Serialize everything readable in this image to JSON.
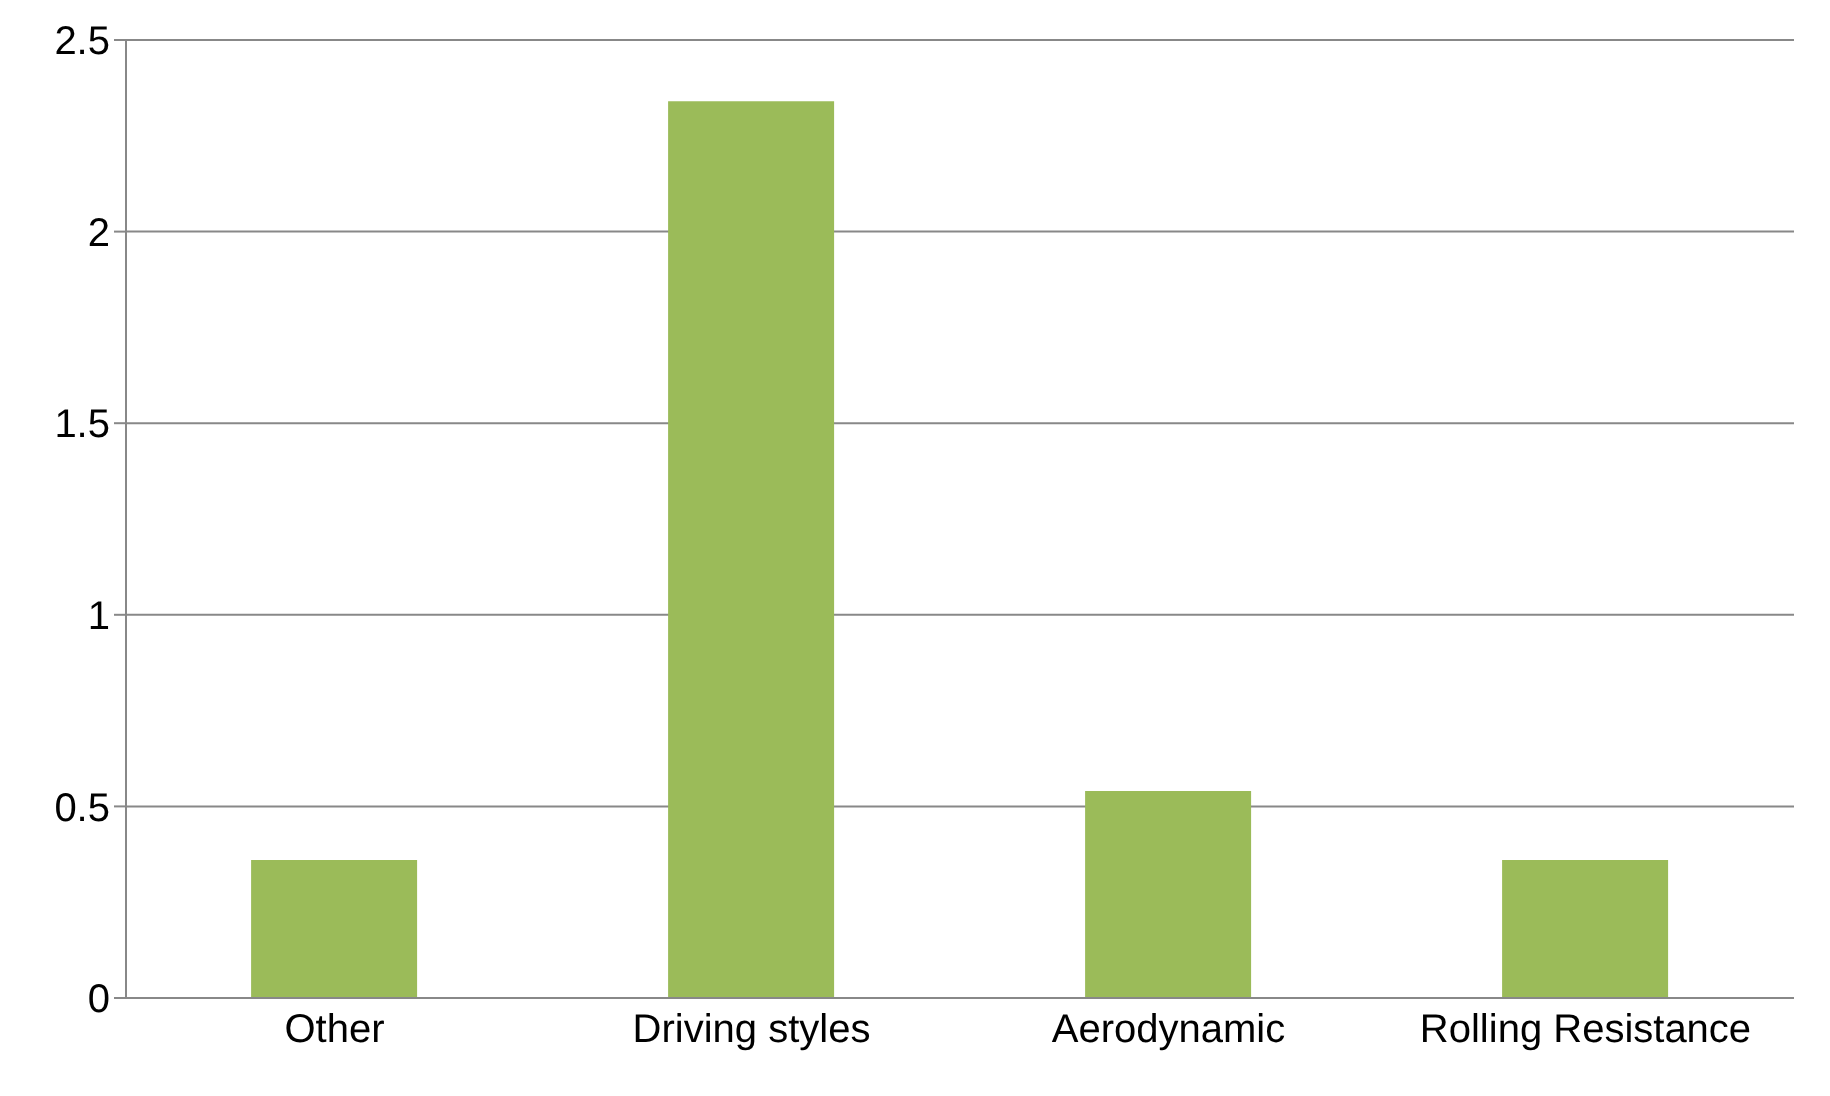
{
  "chart_data": {
    "type": "bar",
    "categories": [
      "Other",
      "Driving styles",
      "Aerodynamic",
      "Rolling Resistance"
    ],
    "values": [
      0.36,
      2.34,
      0.54,
      0.36
    ],
    "color": "#9bbb59",
    "ylim": [
      0,
      2.5
    ],
    "yticks": [
      0,
      0.5,
      1,
      1.5,
      2,
      2.5
    ],
    "grid": "y"
  }
}
